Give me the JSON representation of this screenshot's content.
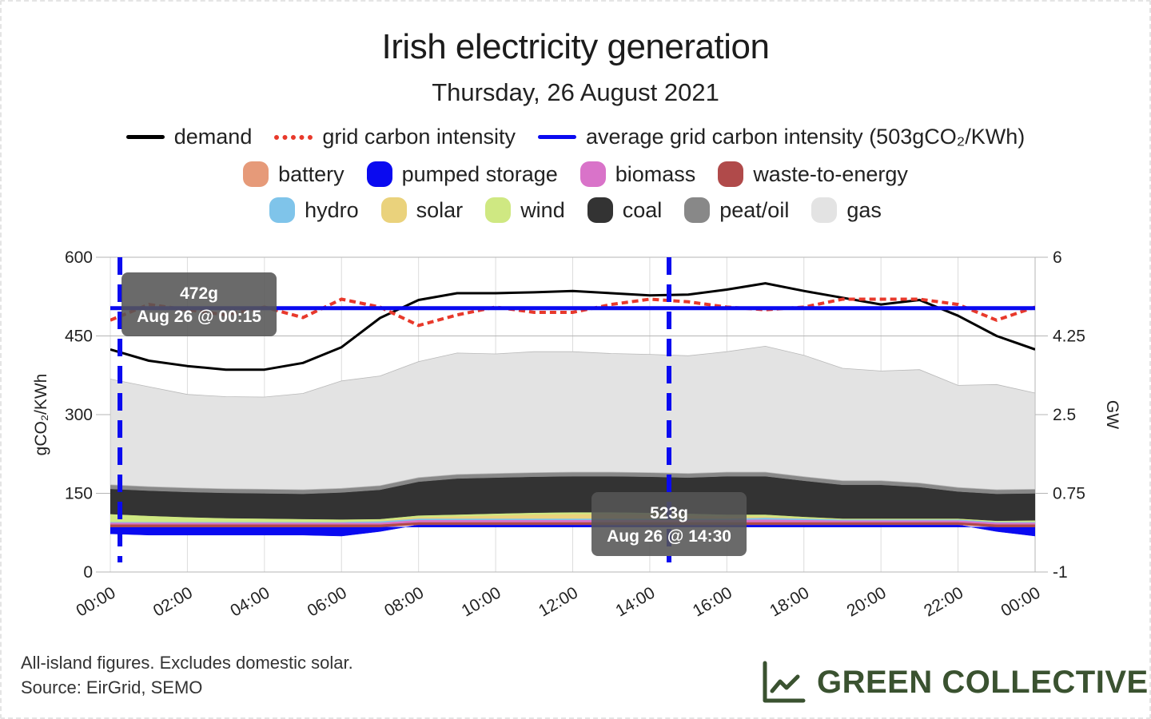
{
  "title": "Irish electricity generation",
  "subtitle": "Thursday, 26 August 2021",
  "legend": {
    "lines": [
      {
        "label": "demand",
        "color": "#000000",
        "style": "solid"
      },
      {
        "label": "grid carbon intensity",
        "color": "#e8392b",
        "style": "dashed"
      },
      {
        "label": "average grid carbon intensity (503gCO₂/KWh)",
        "color": "#0a0af0",
        "style": "solid"
      }
    ],
    "row2": [
      {
        "label": "battery",
        "color": "#e69a79"
      },
      {
        "label": "pumped storage",
        "color": "#0a0af0"
      },
      {
        "label": "biomass",
        "color": "#d973c9"
      },
      {
        "label": "waste-to-energy",
        "color": "#b04a4a"
      }
    ],
    "row3": [
      {
        "label": "hydro",
        "color": "#7fc4ea"
      },
      {
        "label": "solar",
        "color": "#ead27c"
      },
      {
        "label": "wind",
        "color": "#cfe882"
      },
      {
        "label": "coal",
        "color": "#333333"
      },
      {
        "label": "peat/oil",
        "color": "#888888"
      },
      {
        "label": "gas",
        "color": "#e3e3e3"
      }
    ]
  },
  "chart_data": {
    "type": "area",
    "x_ticks": [
      "00:00",
      "02:00",
      "04:00",
      "06:00",
      "08:00",
      "10:00",
      "12:00",
      "14:00",
      "16:00",
      "18:00",
      "20:00",
      "22:00",
      "00:00"
    ],
    "x_hours": [
      0,
      24
    ],
    "y_left": {
      "label": "gCO₂/KWh",
      "range": [
        0,
        600
      ],
      "ticks": [
        "0",
        "150",
        "300",
        "450",
        "600"
      ]
    },
    "y_right": {
      "label": "GW",
      "range": [
        -1,
        6
      ],
      "ticks": [
        "-1",
        "0.75",
        "2.5",
        "4.25",
        "6"
      ]
    },
    "grid": true,
    "legend_position": "top",
    "average_intensity": 503,
    "hours": [
      0,
      1,
      2,
      3,
      4,
      5,
      6,
      7,
      8,
      9,
      10,
      11,
      12,
      13,
      14,
      15,
      16,
      17,
      18,
      19,
      20,
      21,
      22,
      23,
      24
    ],
    "carbon_intensity": [
      480,
      510,
      500,
      490,
      505,
      485,
      520,
      505,
      470,
      490,
      505,
      495,
      495,
      510,
      520,
      515,
      505,
      500,
      505,
      520,
      520,
      520,
      510,
      480,
      505
    ],
    "demand_gw": [
      3.95,
      3.7,
      3.58,
      3.5,
      3.5,
      3.65,
      4.0,
      4.65,
      5.05,
      5.2,
      5.2,
      5.22,
      5.25,
      5.2,
      5.15,
      5.17,
      5.28,
      5.42,
      5.25,
      5.1,
      4.95,
      5.05,
      4.7,
      4.25,
      3.95
    ],
    "series": [
      {
        "name": "pumped storage",
        "values": [
          -0.15,
          -0.18,
          -0.18,
          -0.18,
          -0.18,
          -0.18,
          -0.2,
          -0.1,
          0.05,
          0.05,
          0.05,
          0.05,
          0.05,
          0.05,
          0.05,
          0.05,
          0.05,
          0.05,
          0.05,
          0.05,
          0.05,
          0.05,
          0.05,
          -0.1,
          -0.2
        ]
      },
      {
        "name": "waste-to-energy",
        "values": [
          0.06,
          0.06,
          0.06,
          0.06,
          0.06,
          0.06,
          0.06,
          0.06,
          0.06,
          0.06,
          0.06,
          0.06,
          0.06,
          0.06,
          0.06,
          0.06,
          0.06,
          0.06,
          0.06,
          0.06,
          0.06,
          0.06,
          0.06,
          0.06,
          0.06
        ]
      },
      {
        "name": "biomass",
        "values": [
          0.04,
          0.04,
          0.04,
          0.04,
          0.04,
          0.04,
          0.04,
          0.04,
          0.05,
          0.05,
          0.05,
          0.05,
          0.05,
          0.05,
          0.05,
          0.05,
          0.05,
          0.06,
          0.05,
          0.04,
          0.04,
          0.04,
          0.04,
          0.04,
          0.04
        ]
      },
      {
        "name": "hydro",
        "values": [
          0.02,
          0.02,
          0.02,
          0.02,
          0.02,
          0.02,
          0.02,
          0.03,
          0.03,
          0.03,
          0.03,
          0.03,
          0.03,
          0.03,
          0.03,
          0.03,
          0.03,
          0.04,
          0.03,
          0.02,
          0.02,
          0.02,
          0.02,
          0.02,
          0.02
        ]
      },
      {
        "name": "solar",
        "values": [
          0,
          0,
          0,
          0,
          0,
          0,
          0,
          0.01,
          0.03,
          0.05,
          0.07,
          0.09,
          0.1,
          0.1,
          0.09,
          0.07,
          0.05,
          0.03,
          0.01,
          0,
          0,
          0,
          0,
          0,
          0
        ]
      },
      {
        "name": "wind",
        "values": [
          0.17,
          0.13,
          0.1,
          0.08,
          0.07,
          0.06,
          0.05,
          0.04,
          0.04,
          0.04,
          0.04,
          0.04,
          0.04,
          0.04,
          0.04,
          0.04,
          0.04,
          0.04,
          0.03,
          0.02,
          0.02,
          0.02,
          0.02,
          0.02,
          0.03
        ]
      },
      {
        "name": "coal",
        "values": [
          0.56,
          0.56,
          0.56,
          0.56,
          0.56,
          0.56,
          0.6,
          0.65,
          0.75,
          0.8,
          0.8,
          0.8,
          0.8,
          0.8,
          0.8,
          0.8,
          0.85,
          0.85,
          0.8,
          0.75,
          0.75,
          0.7,
          0.6,
          0.6,
          0.6
        ]
      },
      {
        "name": "peat/oil",
        "values": [
          0.09,
          0.09,
          0.09,
          0.09,
          0.09,
          0.09,
          0.09,
          0.09,
          0.09,
          0.09,
          0.09,
          0.09,
          0.09,
          0.09,
          0.09,
          0.09,
          0.09,
          0.09,
          0.09,
          0.09,
          0.09,
          0.09,
          0.09,
          0.09,
          0.09
        ]
      },
      {
        "name": "gas",
        "values": [
          2.35,
          2.22,
          2.08,
          2.05,
          2.05,
          2.14,
          2.39,
          2.44,
          2.58,
          2.7,
          2.66,
          2.69,
          2.68,
          2.64,
          2.63,
          2.62,
          2.68,
          2.8,
          2.7,
          2.5,
          2.44,
          2.52,
          2.27,
          2.34,
          2.14
        ]
      }
    ],
    "annotations": [
      {
        "hour": 0.25,
        "value_label": "472g",
        "time_label": "Aug 26 @ 00:15"
      },
      {
        "hour": 14.5,
        "value_label": "523g",
        "time_label": "Aug 26 @ 14:30"
      }
    ]
  },
  "footnote": {
    "line1": "All-island figures. Excludes domestic solar.",
    "line2": "Source: EirGrid, SEMO"
  },
  "brand": {
    "name": "GREEN COLLECTIVE",
    "color": "#3a5230",
    "icon": "chart-line-icon"
  }
}
